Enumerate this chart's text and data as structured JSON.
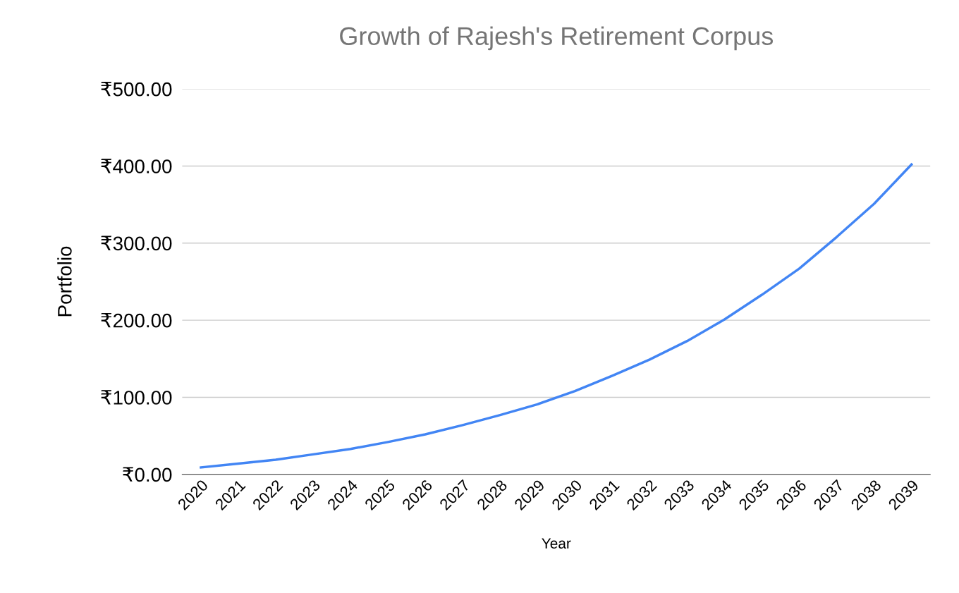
{
  "chart_data": {
    "type": "line",
    "title": "Growth of Rajesh's Retirement Corpus",
    "xlabel": "Year",
    "ylabel": "Portfolio",
    "categories": [
      "2020",
      "2021",
      "2022",
      "2023",
      "2024",
      "2025",
      "2026",
      "2027",
      "2028",
      "2029",
      "2030",
      "2031",
      "2032",
      "2033",
      "2034",
      "2035",
      "2036",
      "2037",
      "2038",
      "2039"
    ],
    "series": [
      {
        "color": "#4285f4",
        "values": [
          9,
          14,
          19,
          26,
          33,
          42,
          52,
          64,
          77,
          91,
          108,
          128,
          149,
          173,
          201,
          233,
          267,
          308,
          351,
          402
        ]
      }
    ],
    "ylim": [
      0,
      500
    ],
    "yticks": [
      {
        "value": 0,
        "label": "₹0.00"
      },
      {
        "value": 100,
        "label": "₹100.00"
      },
      {
        "value": 200,
        "label": "₹200.00"
      },
      {
        "value": 300,
        "label": "₹300.00"
      },
      {
        "value": 400,
        "label": "₹400.00"
      },
      {
        "value": 500,
        "label": "₹500.00"
      }
    ],
    "grid": "y",
    "marker": "none",
    "line_style": "solid"
  }
}
